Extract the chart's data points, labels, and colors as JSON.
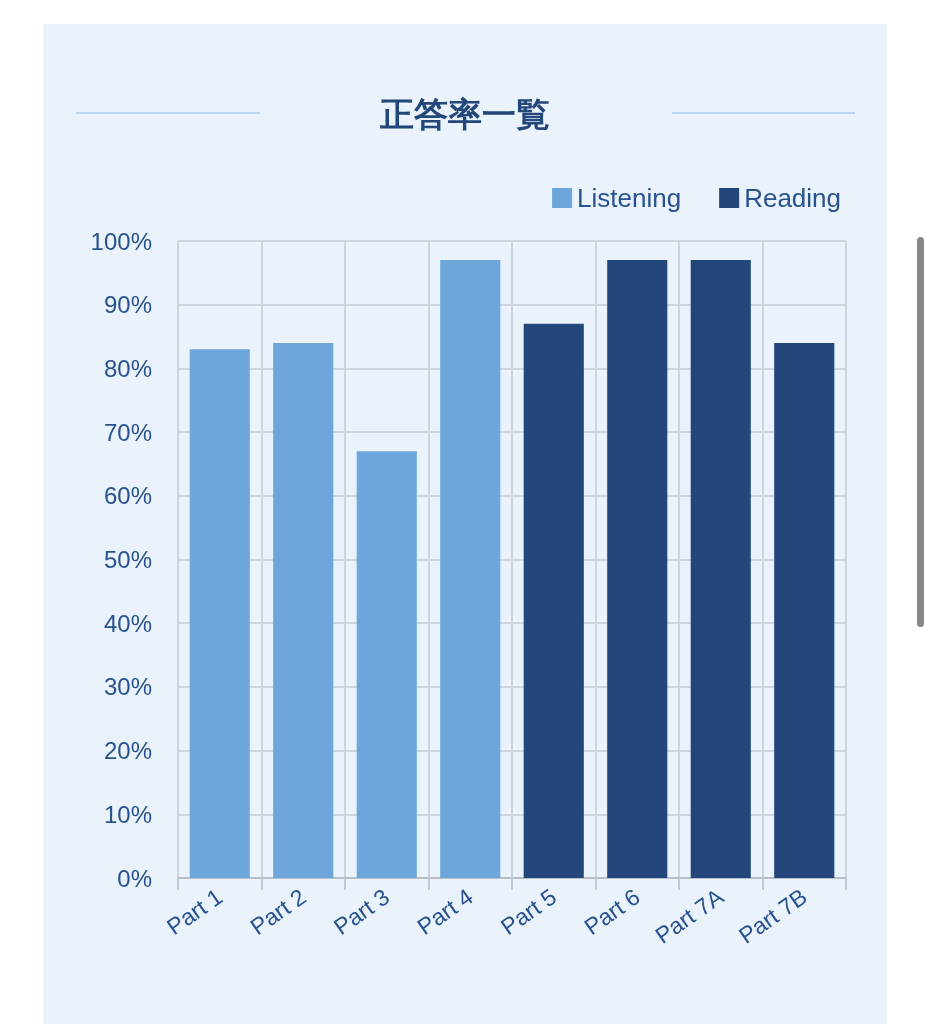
{
  "chart_data": {
    "type": "bar",
    "title": "正答率一覧",
    "categories": [
      "Part 1",
      "Part 2",
      "Part 3",
      "Part 4",
      "Part 5",
      "Part 6",
      "Part 7A",
      "Part 7B"
    ],
    "series": [
      {
        "name": "Listening",
        "color": "#6ca6da",
        "values": [
          83,
          84,
          67,
          97,
          null,
          null,
          null,
          null
        ]
      },
      {
        "name": "Reading",
        "color": "#23477b",
        "values": [
          null,
          null,
          null,
          null,
          87,
          97,
          97,
          84
        ]
      }
    ],
    "ylim": [
      0,
      100
    ],
    "yticks": [
      {
        "value": 0,
        "label": "0%"
      },
      {
        "value": 10,
        "label": "10%"
      },
      {
        "value": 20,
        "label": "20%"
      },
      {
        "value": 30,
        "label": "30%"
      },
      {
        "value": 40,
        "label": "40%"
      },
      {
        "value": 50,
        "label": "50%"
      },
      {
        "value": 60,
        "label": "60%"
      },
      {
        "value": 70,
        "label": "70%"
      },
      {
        "value": 80,
        "label": "80%"
      },
      {
        "value": 90,
        "label": "90%"
      },
      {
        "value": 100,
        "label": "100%"
      }
    ],
    "grid": true,
    "legend": "top right"
  }
}
